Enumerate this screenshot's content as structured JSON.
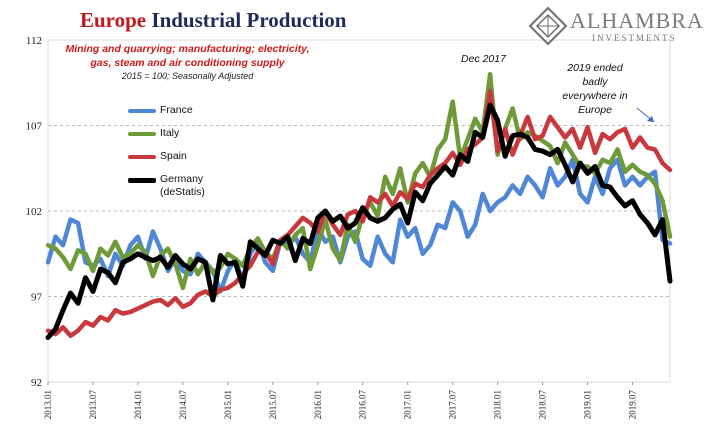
{
  "title": {
    "part1": "Europe",
    "part2": " Industrial Production"
  },
  "subtitle": "Mining and quarrying; manufacturing; electricity, gas, steam and air conditioning supply",
  "note": "2015 = 100; Seasonally Adjusted",
  "logo": {
    "name": "ALHAMBRA",
    "sub": "INVESTMENTS"
  },
  "annotations": {
    "peak": "Dec 2017",
    "end": "2019 ended badly everywhere in Europe"
  },
  "colors": {
    "France": "#4f86d6",
    "Italy": "#6f9a3a",
    "Spain": "#c9383c",
    "Germany": "#000000"
  },
  "chart_data": {
    "type": "line",
    "ylim": [
      92,
      112
    ],
    "yticks": [
      92,
      97,
      102,
      107,
      112
    ],
    "grid": "horizontal dashed",
    "legend_position": "left",
    "xtick_labels": [
      "2013.01",
      "2013.07",
      "2014.01",
      "2014.07",
      "2015.01",
      "2015.07",
      "2016.01",
      "2016.07",
      "2017.01",
      "2017.07",
      "2018.01",
      "2018.07",
      "2019.01",
      "2019.07"
    ],
    "months": 84,
    "series": [
      {
        "name": "France",
        "values": [
          99,
          100.5,
          100,
          101.5,
          101.3,
          99,
          98.8,
          99.2,
          98.2,
          99.5,
          98.8,
          100,
          100.5,
          99.2,
          100.8,
          99.8,
          98.5,
          99.2,
          98.5,
          98.3,
          99.5,
          99,
          98.5,
          97.3,
          98.5,
          99.2,
          97.8,
          99.5,
          100.2,
          99,
          98.5,
          100.2,
          100,
          100.5,
          99.5,
          99,
          101,
          100.2,
          100.5,
          99,
          100.5,
          100.8,
          99.2,
          98.8,
          100.5,
          99.5,
          99,
          101.5,
          100.5,
          101,
          99.5,
          100,
          101.2,
          101,
          102.5,
          102,
          100.5,
          101.2,
          103,
          102,
          102.5,
          102.8,
          103.5,
          103,
          104,
          103.5,
          102.8,
          104.5,
          103.5,
          104,
          105,
          103,
          102.5,
          104,
          103,
          104.5,
          105,
          103.5,
          104,
          103.5,
          104,
          104.3,
          100.3,
          100.1
        ]
      },
      {
        "name": "Italy",
        "values": [
          100,
          99.8,
          99.3,
          98.6,
          99.7,
          99.5,
          98.5,
          99.8,
          99.4,
          100.2,
          99.3,
          99.5,
          100,
          99.6,
          98.2,
          99.4,
          99.8,
          98.9,
          97.5,
          99.2,
          98.3,
          99,
          98.4,
          98.7,
          99.5,
          99.2,
          98.8,
          99.8,
          100.4,
          99.6,
          99.2,
          100.3,
          99.8,
          100.6,
          101,
          98.6,
          100,
          101.5,
          99.8,
          99.1,
          101.2,
          100.2,
          101.8,
          102.5,
          101.7,
          104,
          103,
          104.5,
          102.5,
          104.2,
          104.8,
          104,
          105.6,
          106.2,
          108.4,
          105.1,
          106.2,
          107.4,
          106.6,
          110,
          105.3,
          106.8,
          108,
          106.2,
          106.6,
          106.4,
          106.1,
          105.8,
          104.8,
          106,
          105.3,
          104.6,
          104.6,
          104.2,
          105,
          104.8,
          105.6,
          104.3,
          104.7,
          104.3,
          104.1,
          103.6,
          102.6,
          100.5
        ]
      },
      {
        "name": "Spain",
        "values": [
          95,
          94.8,
          95.2,
          94.7,
          95,
          95.5,
          95.3,
          95.8,
          95.6,
          96.2,
          96,
          96.1,
          96.3,
          96.5,
          96.7,
          96.8,
          96.5,
          96.9,
          96.4,
          96.6,
          97.1,
          97.3,
          97,
          97.4,
          97.5,
          97.8,
          98.3,
          98.8,
          99.6,
          99.6,
          98.9,
          100.3,
          100.6,
          101.1,
          101.6,
          101.3,
          100.8,
          102,
          101.2,
          100.6,
          101.8,
          102,
          101.4,
          102.8,
          102.5,
          103,
          102.3,
          103.1,
          102.7,
          103.6,
          103.4,
          104.1,
          104.5,
          104.8,
          105.4,
          104.7,
          105.6,
          105.9,
          106.3,
          109,
          105.5,
          106.8,
          105.3,
          106.4,
          107.5,
          106.2,
          106.4,
          107.5,
          106.9,
          106.3,
          106.8,
          105.7,
          106.9,
          105.4,
          106.5,
          106.2,
          106.6,
          106.8,
          105.7,
          106.3,
          105.7,
          105.6,
          104.8,
          104.4
        ]
      },
      {
        "name": "Germany (deStatis)",
        "values": [
          94.6,
          95.1,
          96.2,
          97.2,
          96.6,
          98.1,
          97.3,
          98.6,
          98.4,
          97.8,
          99,
          99.2,
          99.5,
          99.3,
          99.1,
          99.3,
          98.7,
          99.4,
          98.9,
          98.6,
          99.2,
          99,
          96.8,
          99.4,
          98.9,
          99,
          97.6,
          100.2,
          99.8,
          99.4,
          100.3,
          100.1,
          100.5,
          99.1,
          100.4,
          100.1,
          101.6,
          102,
          101.4,
          101.7,
          101,
          101.3,
          102.2,
          101.6,
          101.4,
          101.6,
          102.1,
          102.4,
          101.3,
          103.1,
          102.6,
          103.6,
          104.1,
          104.6,
          104.1,
          105.3,
          104.9,
          106.6,
          106.3,
          108.2,
          107.3,
          105.2,
          106.4,
          106.5,
          106.3,
          105.6,
          105.5,
          105.3,
          105.6,
          104.7,
          103.7,
          104.8,
          104.2,
          104.6,
          103.5,
          103.4,
          102.8,
          102.3,
          102.6,
          101.8,
          101.3,
          100.6,
          101.5,
          97.9
        ]
      }
    ]
  }
}
